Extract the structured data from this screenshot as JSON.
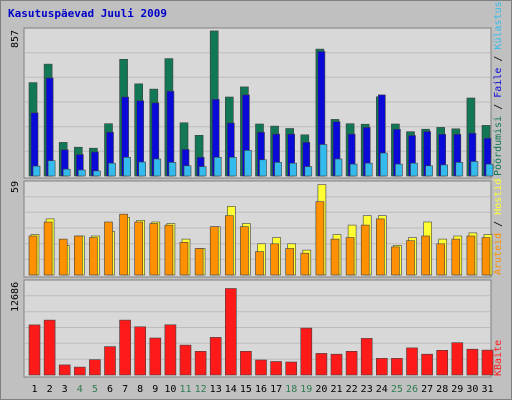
{
  "title": "Kasutuspäevad Juuli 2009",
  "colors": {
    "background": "#c0c0c0",
    "plot_bg": "#d8d8d8",
    "grid": "#bcbcbc",
    "title": "#0000c8",
    "weekday_label": "#000000",
    "weekend_label": "#2e7d4f",
    "visits": "#117755",
    "pages": "#0a0ad8",
    "hits": "#33bbee",
    "visitors": "#ff9000",
    "kbytes": "#ff1a1a",
    "yellow": "#ffff33"
  },
  "panel_labels": {
    "top": [
      {
        "text": "Pöördumisi",
        "color": "#117755"
      },
      {
        "text": "Faile",
        "color": "#0a0ad8"
      },
      {
        "text": "Külastusi",
        "color": "#33bbee"
      }
    ],
    "middle": [
      {
        "text": "Hostid",
        "color": "#ffff33"
      },
      {
        "text": "Aruteid",
        "color": "#ff9000"
      }
    ],
    "bottom": [
      {
        "text": "KBaite",
        "color": "#ff1a1a"
      }
    ]
  },
  "chart_data": [
    {
      "type": "bar",
      "name": "top",
      "ymax_label": "857",
      "ylim": [
        0,
        857
      ],
      "categories": [
        "1",
        "2",
        "3",
        "4",
        "5",
        "6",
        "7",
        "8",
        "9",
        "10",
        "11",
        "12",
        "13",
        "14",
        "15",
        "16",
        "17",
        "18",
        "19",
        "20",
        "21",
        "22",
        "23",
        "24",
        "25",
        "26",
        "27",
        "28",
        "29",
        "30",
        "31"
      ],
      "weekend_days": [
        "4",
        "5",
        "11",
        "12",
        "18",
        "19",
        "25",
        "26"
      ],
      "series": [
        {
          "name": "Pöördumisi",
          "color": "#117755",
          "values": [
            548,
            657,
            197,
            169,
            163,
            307,
            685,
            541,
            510,
            689,
            312,
            239,
            852,
            464,
            523,
            305,
            293,
            279,
            242,
            745,
            332,
            307,
            304,
            465,
            305,
            260,
            275,
            285,
            277,
            458,
            297
          ]
        },
        {
          "name": "Faile",
          "color": "#0a0ad8",
          "values": [
            371,
            575,
            154,
            126,
            141,
            257,
            464,
            442,
            429,
            498,
            156,
            110,
            450,
            311,
            476,
            257,
            246,
            246,
            197,
            731,
            319,
            246,
            285,
            476,
            275,
            238,
            261,
            245,
            245,
            251,
            222
          ]
        },
        {
          "name": "Külastusi",
          "color": "#33bbee",
          "values": [
            58,
            90,
            40,
            35,
            30,
            75,
            110,
            82,
            100,
            80,
            60,
            55,
            110,
            110,
            150,
            95,
            80,
            75,
            55,
            185,
            100,
            70,
            75,
            135,
            70,
            75,
            60,
            65,
            80,
            85,
            70
          ]
        }
      ]
    },
    {
      "type": "bar",
      "name": "middle",
      "ymax_label": "59",
      "ylim": [
        0,
        59
      ],
      "series": [
        {
          "name": "Hostid",
          "color": "#ffff33",
          "values": [
            26,
            36,
            19,
            25,
            25,
            28,
            37,
            35,
            34,
            33,
            23,
            17,
            31,
            44,
            33,
            20,
            24,
            20,
            16,
            58,
            26,
            32,
            38,
            38,
            19,
            24,
            34,
            23,
            25,
            27,
            26
          ]
        },
        {
          "name": "Aruteid",
          "color": "#ff9000",
          "values": [
            25,
            34,
            23,
            25,
            24,
            34,
            39,
            34,
            33,
            32,
            21,
            17,
            31,
            38,
            31,
            15,
            20,
            17,
            14,
            47,
            23,
            24,
            32,
            36,
            18,
            22,
            25,
            20,
            23,
            25,
            24
          ]
        }
      ]
    },
    {
      "type": "bar",
      "name": "bottom",
      "ymax_label": "12686",
      "ylim": [
        0,
        12686
      ],
      "series": [
        {
          "name": "KBaite",
          "color": "#ff1a1a",
          "values": [
            6830,
            7490,
            1380,
            1080,
            2090,
            3870,
            7490,
            6570,
            5050,
            6850,
            4080,
            3230,
            5130,
            11800,
            3230,
            2040,
            1840,
            1780,
            6400,
            2950,
            2840,
            3230,
            4990,
            2260,
            2260,
            3700,
            2840,
            3370,
            4400,
            3520,
            3400
          ]
        }
      ]
    }
  ]
}
